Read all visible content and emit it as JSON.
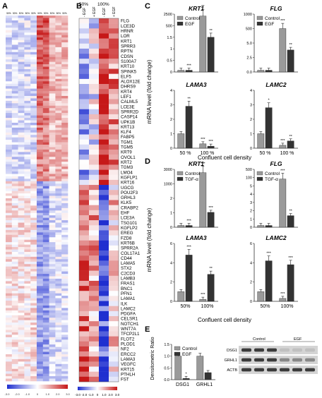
{
  "panels": {
    "A": "A",
    "B": "B",
    "C": "C",
    "D": "D",
    "E": "E"
  },
  "panel_b": {
    "header_50": "50%",
    "header_100": "100%",
    "col_labels": [
      "- EGF",
      "+ EGF",
      "- EGF",
      "+ EGF"
    ],
    "genes": [
      "FLG",
      "LCE3D",
      "HRNR",
      "LOR",
      "KRT1",
      "SPRR3",
      "RPTN",
      "CDSN",
      "S100A7",
      "KRT10",
      "SPINK5",
      "ELF5",
      "ALOX12E",
      "DHRS9",
      "KRT4",
      "LEF1",
      "CALML5",
      "LCE3E",
      "SPRR2D",
      "CASP14",
      "UPK1B",
      "KRT13",
      "KLF4",
      "FABP5",
      "TGM1",
      "TGM5",
      "KRT9",
      "OVOL1",
      "KRT2",
      "TGM3",
      "LMO4",
      "KGFLP1",
      "KRT16",
      "UGCG",
      "POU2F3",
      "GRHL3",
      "KLK5",
      "CRABP2",
      "EHF",
      "LCE3A",
      "TSG101",
      "KGFLP2",
      "EREG",
      "FZD8",
      "KRT6B",
      "SPRR2A",
      "COL17A1",
      "CD44",
      "LAMA5",
      "STX2",
      "C2CD3",
      "LAMB3",
      "FRAS1",
      "BNC1",
      "PFN1",
      "LAMA1",
      "ILK",
      "LAMC2",
      "PDGFA",
      "CELSR1",
      "NOTCH1",
      "WNT7A",
      "TFCP2L1",
      "FLOT2",
      "PLOD1",
      "NF2",
      "ERCC2",
      "LAMA3",
      "VEGFC",
      "KRT15",
      "PTHLH",
      "FST"
    ],
    "scale_ticks": [
      "-3.0",
      "-2.0",
      "-1.0",
      "0",
      "1.0",
      "2.0",
      "3.0"
    ]
  },
  "panel_a": {
    "scale_ticks": [
      "-3.0",
      "-2.0",
      "-1.0",
      "0",
      "1.0",
      "2.0",
      "3.0"
    ]
  },
  "colors": {
    "control": "#9a9a9a",
    "egf": "#333333",
    "low": "#1f2fd0",
    "high": "#c61818"
  },
  "chart_data": [
    {
      "type": "bar",
      "panel": "C",
      "title": "KRT1",
      "categories": [
        "50 %",
        "100 %"
      ],
      "series": [
        {
          "name": "Control",
          "values": [
            1.0,
            2900
          ]
        },
        {
          "name": "EGF",
          "values": [
            0.1,
            1800
          ]
        }
      ],
      "significance": [
        "",
        "***",
        "**",
        "**"
      ],
      "ylim": [
        0,
        3000
      ],
      "ticks": [
        "0",
        "0.5",
        "1",
        "1.5",
        "500",
        "2500"
      ]
    },
    {
      "type": "bar",
      "panel": "C",
      "title": "FLG",
      "categories": [
        "50 %",
        "100 %"
      ],
      "series": [
        {
          "name": "Control",
          "values": [
            0.2,
            750
          ]
        },
        {
          "name": "EGF",
          "values": [
            0.15,
            380
          ]
        }
      ],
      "significance": [
        "",
        "",
        "***",
        "**"
      ],
      "ylim": [
        0,
        1000
      ],
      "ticks": [
        "0.0",
        "2.5",
        "5.0",
        "500",
        "1000"
      ]
    },
    {
      "type": "bar",
      "panel": "C",
      "title": "LAMA3",
      "categories": [
        "50 %",
        "100 %"
      ],
      "series": [
        {
          "name": "Control",
          "values": [
            1.0,
            0.05
          ]
        },
        {
          "name": "EGF",
          "values": [
            2.9,
            0.1
          ]
        }
      ],
      "significance": [
        "",
        "**",
        "***",
        "***"
      ],
      "ylim": [
        0,
        4
      ],
      "ticks": [
        "0",
        "1",
        "2",
        "3",
        "4"
      ]
    },
    {
      "type": "bar",
      "panel": "C",
      "title": "LAMC2",
      "categories": [
        "50 %",
        "100 %"
      ],
      "series": [
        {
          "name": "Control",
          "values": [
            1.0,
            0.2
          ]
        },
        {
          "name": "EGF",
          "values": [
            2.8,
            0.5
          ]
        }
      ],
      "significance": [
        "",
        "*",
        "***",
        "**"
      ],
      "ylim": [
        0,
        4
      ],
      "ticks": [
        "0",
        "1",
        "2",
        "3",
        "4"
      ]
    },
    {
      "type": "bar",
      "panel": "D",
      "title": "KRT1",
      "categories": [
        "50%",
        "100%"
      ],
      "series": [
        {
          "name": "Control",
          "values": [
            1.0,
            3300
          ]
        },
        {
          "name": "TGF-α",
          "values": [
            0.1,
            900
          ]
        }
      ],
      "significance": [
        "",
        "***",
        "***",
        "***"
      ],
      "ylim": [
        0,
        3500
      ],
      "ticks": [
        "0",
        "1",
        "2",
        "1000",
        "3000"
      ]
    },
    {
      "type": "bar",
      "panel": "D",
      "title": "FLG",
      "categories": [
        "50%",
        "100%"
      ],
      "series": [
        {
          "name": "Control",
          "values": [
            1.0,
            500
          ]
        },
        {
          "name": "TGF-α",
          "values": [
            1.0,
            120
          ]
        }
      ],
      "significance": [
        "",
        "",
        "***",
        "**"
      ],
      "ylim": [
        0,
        600
      ],
      "ticks": [
        "0",
        "1",
        "2",
        "3",
        "4",
        "5",
        "100",
        "500"
      ]
    },
    {
      "type": "bar",
      "panel": "D",
      "title": "LAMA3",
      "categories": [
        "50%",
        "100%"
      ],
      "series": [
        {
          "name": "Control",
          "values": [
            1.0,
            0.2
          ]
        },
        {
          "name": "TGF-α",
          "values": [
            4.8,
            2.8
          ]
        }
      ],
      "significance": [
        "",
        "***",
        "***",
        "**"
      ],
      "ylim": [
        0,
        6
      ],
      "ticks": [
        "0",
        "2",
        "4",
        "6"
      ]
    },
    {
      "type": "bar",
      "panel": "D",
      "title": "LAMC2",
      "categories": [
        "50%",
        "100%"
      ],
      "series": [
        {
          "name": "Control",
          "values": [
            1.0,
            0.3
          ]
        },
        {
          "name": "TGF-α",
          "values": [
            4.2,
            3.8
          ]
        }
      ],
      "significance": [
        "",
        "***",
        "***",
        "***"
      ],
      "ylim": [
        0,
        6
      ],
      "ticks": [
        "0",
        "2",
        "4",
        "6"
      ]
    },
    {
      "type": "bar",
      "panel": "E",
      "categories": [
        "DSG1",
        "GRHL1"
      ],
      "series": [
        {
          "name": "Control",
          "values": [
            1.0,
            1.0
          ]
        },
        {
          "name": "EGF",
          "values": [
            0.04,
            0.3
          ]
        }
      ],
      "significance": [
        "**",
        "*"
      ],
      "ylim": [
        0,
        1.5
      ],
      "ticks": [
        "0.0",
        "0.5",
        "1.0",
        "1.5"
      ]
    }
  ],
  "axis_text": {
    "c_ylabel": "mRNA level (fold change)",
    "c_xlabel": "Confluent cell density",
    "d_ylabel": "mRNA level (fold change)",
    "d_xlabel": "Confluent cell density",
    "e_ylabel": "Densitometric Ratio"
  },
  "blot": {
    "rows": [
      "DSG1",
      "GRHL1",
      "ACTB"
    ],
    "groups": [
      "Control",
      "EGF"
    ]
  }
}
